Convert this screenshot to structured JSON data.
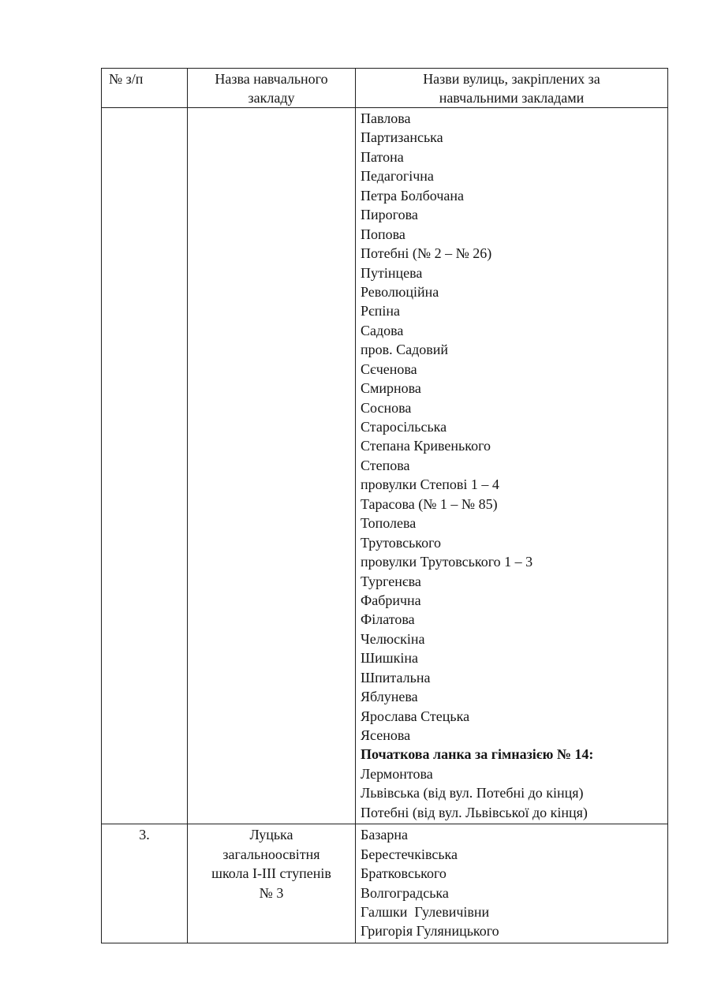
{
  "table": {
    "border_color": "#1f1f1f",
    "header": {
      "col1_lines": [
        "№ з/п"
      ],
      "col2_lines": [
        "Назва навчального",
        "закладу"
      ],
      "col3_lines": [
        "Назви вулиць, закріплених за",
        "навчальними закладами"
      ]
    },
    "rows": [
      {
        "num": "",
        "school_lines": [],
        "streets": [
          {
            "text": "Павлова",
            "bold": false
          },
          {
            "text": "Партизанська",
            "bold": false
          },
          {
            "text": "Патона",
            "bold": false
          },
          {
            "text": "Педагогічна",
            "bold": false
          },
          {
            "text": "Петра Болбочана",
            "bold": false
          },
          {
            "text": "Пирогова",
            "bold": false
          },
          {
            "text": "Попова",
            "bold": false
          },
          {
            "text": "Потебні (№ 2 – № 26)",
            "bold": false
          },
          {
            "text": "Путінцева",
            "bold": false
          },
          {
            "text": "Революційна",
            "bold": false
          },
          {
            "text": "Рєпіна",
            "bold": false
          },
          {
            "text": "Садова",
            "bold": false
          },
          {
            "text": "пров. Садовий",
            "bold": false
          },
          {
            "text": "Сєченова",
            "bold": false
          },
          {
            "text": "Смирнова",
            "bold": false
          },
          {
            "text": "Соснова",
            "bold": false
          },
          {
            "text": "Старосільська",
            "bold": false
          },
          {
            "text": "Степана Кривенького",
            "bold": false
          },
          {
            "text": "Степова",
            "bold": false
          },
          {
            "text": "провулки Степові 1 – 4",
            "bold": false
          },
          {
            "text": "Тарасова (№ 1 – № 85)",
            "bold": false
          },
          {
            "text": "Тополева",
            "bold": false
          },
          {
            "text": "Трутовського",
            "bold": false
          },
          {
            "text": "провулки Трутовського 1 – 3",
            "bold": false
          },
          {
            "text": "Тургенєва",
            "bold": false
          },
          {
            "text": "Фабрична",
            "bold": false
          },
          {
            "text": "Філатова",
            "bold": false
          },
          {
            "text": "Челюскіна",
            "bold": false
          },
          {
            "text": "Шишкіна",
            "bold": false
          },
          {
            "text": "Шпитальна",
            "bold": false
          },
          {
            "text": "Яблунева",
            "bold": false
          },
          {
            "text": "Ярослава Стецька",
            "bold": false
          },
          {
            "text": "Ясенова",
            "bold": false
          },
          {
            "text": "Початкова ланка за гімназією № 14:",
            "bold": true
          },
          {
            "text": "Лермонтова",
            "bold": false
          },
          {
            "text": "Львівська (від вул. Потебні до кінця)",
            "bold": false
          },
          {
            "text": "Потебні (від вул. Львівської до кінця)",
            "bold": false
          }
        ]
      },
      {
        "num": "3.",
        "school_lines": [
          "Луцька",
          "загальноосвітня",
          "школа І-ІІІ ступенів",
          "№ 3"
        ],
        "streets": [
          {
            "text": "Базарна",
            "bold": false
          },
          {
            "text": "Берестечківська",
            "bold": false
          },
          {
            "text": "Братковського",
            "bold": false
          },
          {
            "text": "Волгоградська",
            "bold": false
          },
          {
            "text": "Галшки  Гулевичівни",
            "bold": false
          },
          {
            "text": "Григорія Гуляницького",
            "bold": false
          }
        ]
      }
    ]
  }
}
